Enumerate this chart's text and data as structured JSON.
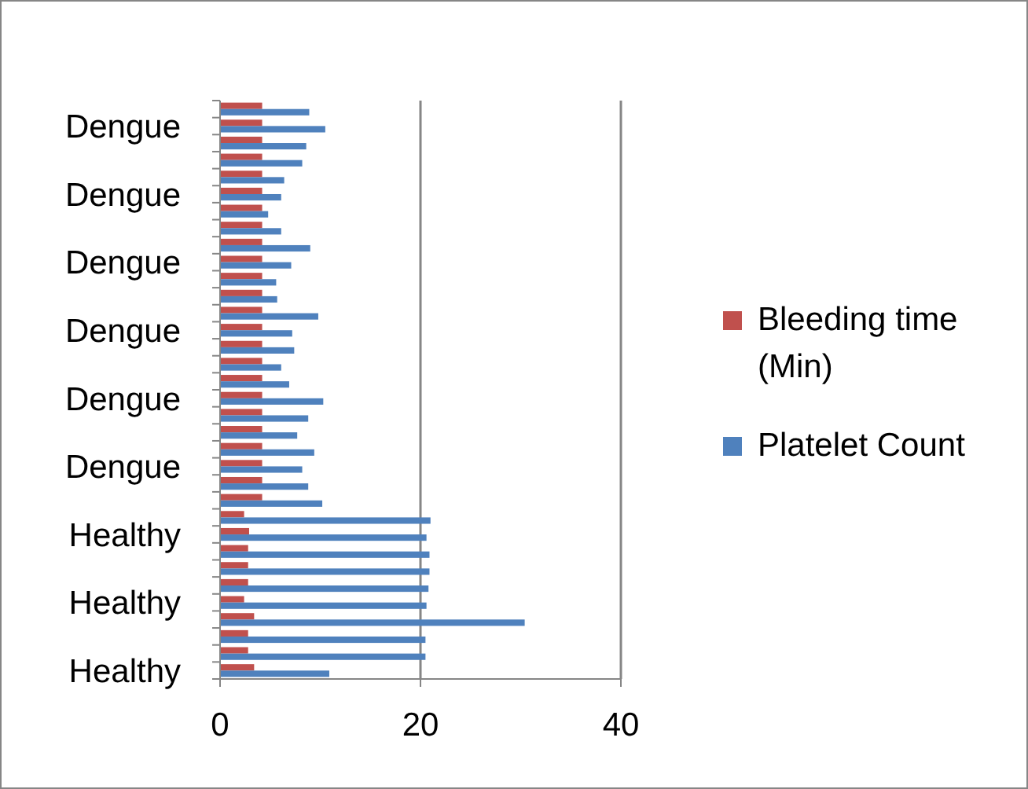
{
  "chart_data": {
    "type": "bar",
    "orientation": "horizontal",
    "categories": [
      null,
      "Dengue",
      null,
      null,
      null,
      "Dengue",
      null,
      null,
      null,
      "Dengue",
      null,
      null,
      null,
      "Dengue",
      null,
      null,
      null,
      "Dengue",
      null,
      null,
      null,
      "Dengue",
      null,
      null,
      null,
      "Healthy",
      null,
      null,
      null,
      "Healthy",
      null,
      null,
      null,
      "Healthy"
    ],
    "series": [
      {
        "name": "Bleeding time (Min)",
        "color": "#c0504d",
        "values": [
          4.2,
          4.2,
          4.2,
          4.2,
          4.2,
          4.2,
          4.2,
          4.2,
          4.2,
          4.2,
          4.2,
          4.2,
          4.2,
          4.2,
          4.2,
          4.2,
          4.2,
          4.2,
          4.2,
          4.2,
          4.2,
          4.2,
          4.2,
          4.2,
          2.4,
          2.9,
          2.8,
          2.8,
          2.8,
          2.4,
          3.4,
          2.8,
          2.8,
          3.4
        ]
      },
      {
        "name": "Platelet Count",
        "color": "#4f81bd",
        "values": [
          8.9,
          10.5,
          8.6,
          8.2,
          6.4,
          6.1,
          4.8,
          6.1,
          9.0,
          7.1,
          5.6,
          5.7,
          9.8,
          7.2,
          7.4,
          6.1,
          6.9,
          10.3,
          8.8,
          7.7,
          9.4,
          8.2,
          8.8,
          10.2,
          21,
          20.6,
          20.9,
          20.9,
          20.8,
          20.6,
          30.4,
          20.5,
          20.5,
          10.9
        ]
      }
    ],
    "xlim": [
      0,
      40
    ],
    "xticks": [
      0,
      20,
      40
    ],
    "grid": "x",
    "legend": "right"
  }
}
